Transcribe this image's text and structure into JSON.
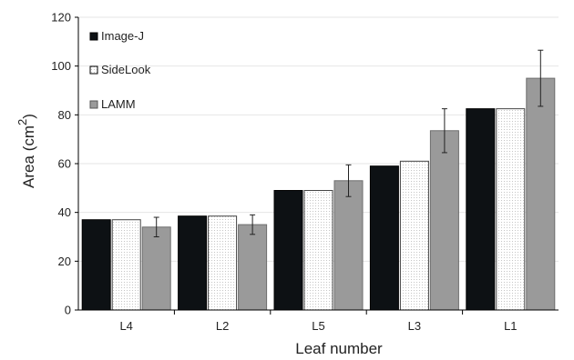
{
  "chart_data": {
    "type": "bar",
    "categories": [
      "L4",
      "L2",
      "L5",
      "L3",
      "L1"
    ],
    "series": [
      {
        "name": "Image-J",
        "values": [
          37,
          38.5,
          49,
          59,
          82.5
        ],
        "color": "#0d1114"
      },
      {
        "name": "SideLook",
        "values": [
          37,
          38.5,
          49,
          61,
          82.5
        ],
        "color": "#ffffff",
        "pattern": "dotted"
      },
      {
        "name": "LAMM",
        "values": [
          34,
          35,
          53,
          73.5,
          95
        ],
        "color": "#9a9a9a",
        "error": [
          4,
          4,
          6.5,
          9,
          11.5
        ]
      }
    ],
    "xlabel": "Leaf number",
    "ylabel_main": "Area (cm",
    "ylabel_sup": "2",
    "ylabel_close": ")",
    "ylim": [
      0,
      120
    ],
    "yticks": [
      "0",
      "20",
      "40",
      "60",
      "80",
      "100",
      "120"
    ],
    "legend": "top-left",
    "grid": true
  }
}
